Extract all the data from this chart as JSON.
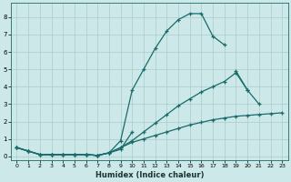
{
  "xlabel": "Humidex (Indice chaleur)",
  "background_color": "#cce8e8",
  "grid_color": "#aacccc",
  "line_color": "#1a6b6b",
  "xlim": [
    -0.5,
    23.5
  ],
  "ylim": [
    -0.2,
    8.8
  ],
  "xticks": [
    0,
    1,
    2,
    3,
    4,
    5,
    6,
    7,
    8,
    9,
    10,
    11,
    12,
    13,
    14,
    15,
    16,
    17,
    18,
    19,
    20,
    21,
    22,
    23
  ],
  "yticks": [
    0,
    1,
    2,
    3,
    4,
    5,
    6,
    7,
    8
  ],
  "s1_x": [
    0,
    1,
    2,
    3,
    4,
    5,
    6,
    7,
    8,
    9,
    10,
    11,
    12,
    13,
    14,
    15,
    16,
    17,
    18
  ],
  "s1_y": [
    0.5,
    0.3,
    0.1,
    0.1,
    0.1,
    0.1,
    0.1,
    0.05,
    0.2,
    0.9,
    3.8,
    5.0,
    6.2,
    7.2,
    7.85,
    8.2,
    8.2,
    6.9,
    6.4
  ],
  "s2_x": [
    0,
    1,
    2,
    3,
    4,
    5,
    6,
    7,
    8,
    9,
    10,
    11,
    12,
    13,
    14,
    15,
    16,
    17,
    18,
    19,
    20,
    21
  ],
  "s2_y": [
    0.5,
    0.3,
    0.1,
    0.1,
    0.1,
    0.1,
    0.1,
    0.05,
    0.2,
    0.5,
    0.9,
    1.4,
    1.9,
    2.4,
    2.9,
    3.3,
    3.7,
    4.0,
    4.3,
    4.8,
    3.8,
    3.0
  ],
  "s3_x": [
    0,
    1,
    2,
    3,
    4,
    5,
    6,
    7,
    8,
    9,
    10,
    11,
    12,
    13,
    14,
    15,
    16,
    17,
    18,
    19,
    20,
    21,
    22,
    23
  ],
  "s3_y": [
    0.5,
    0.3,
    0.1,
    0.1,
    0.1,
    0.1,
    0.1,
    0.05,
    0.2,
    0.5,
    0.8,
    1.0,
    1.2,
    1.4,
    1.6,
    1.8,
    1.95,
    2.1,
    2.2,
    2.3,
    2.35,
    2.4,
    2.45,
    2.5
  ],
  "s4_x": [
    0,
    1,
    2,
    3,
    4,
    5,
    6,
    7,
    8,
    9,
    10,
    11,
    19,
    20
  ],
  "s4_y": [
    0.5,
    0.3,
    0.1,
    0.1,
    0.1,
    0.1,
    0.1,
    0.05,
    0.2,
    0.4,
    1.4,
    null,
    4.9,
    3.8
  ]
}
